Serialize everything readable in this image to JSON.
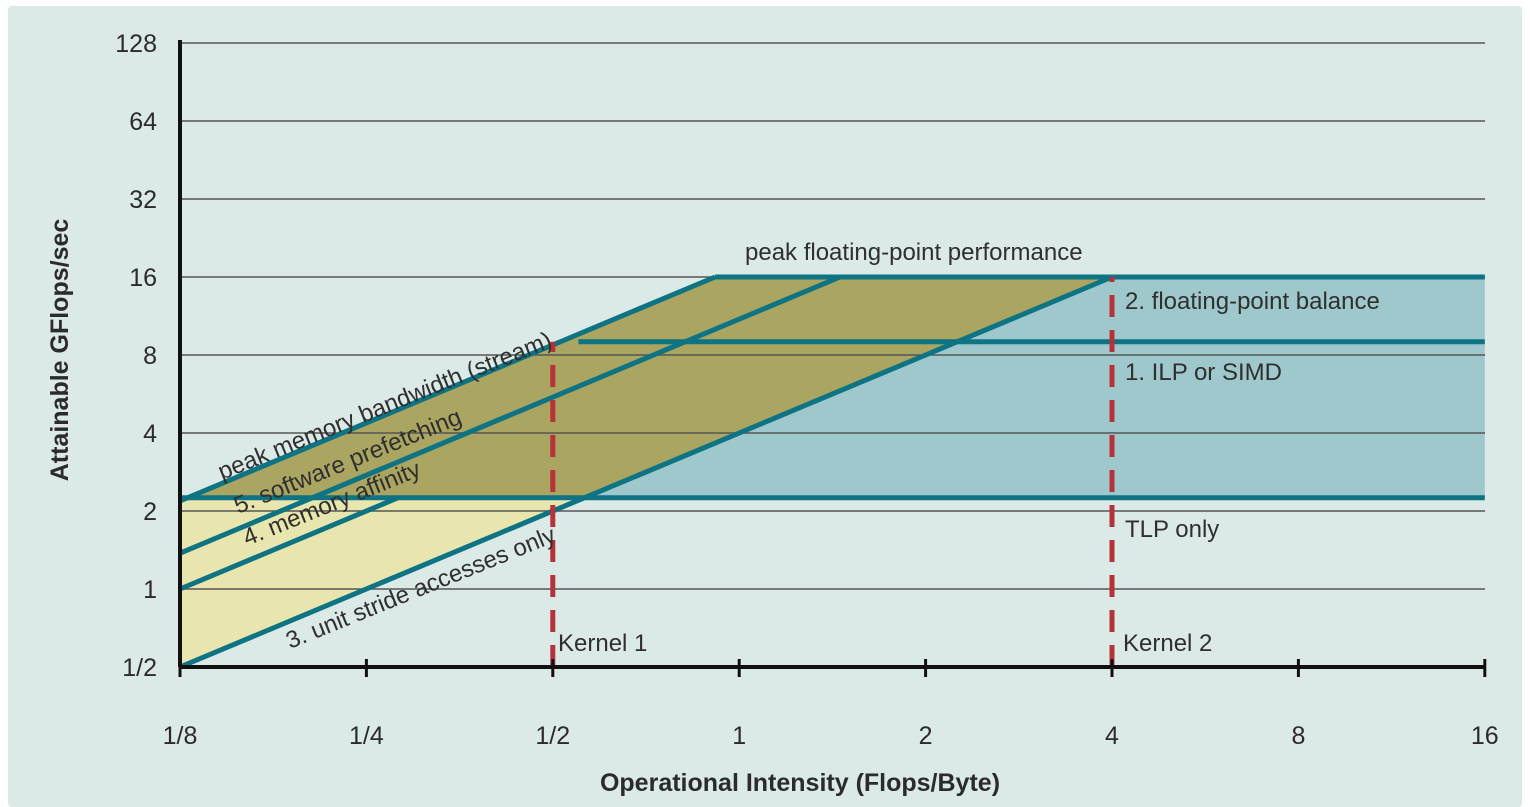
{
  "chart_data": {
    "type": "line",
    "xlabel": "Operational Intensity (Flops/Byte)",
    "ylabel": "Attainable GFlops/sec",
    "x_scale": "log2",
    "y_scale": "log2",
    "xlim": [
      0.125,
      16
    ],
    "ylim": [
      0.5,
      128
    ],
    "x_ticks": [
      {
        "value": 0.125,
        "label": "1/8"
      },
      {
        "value": 0.25,
        "label": "1/4"
      },
      {
        "value": 0.5,
        "label": "1/2"
      },
      {
        "value": 1,
        "label": "1"
      },
      {
        "value": 2,
        "label": "2"
      },
      {
        "value": 4,
        "label": "4"
      },
      {
        "value": 8,
        "label": "8"
      },
      {
        "value": 16,
        "label": "16"
      }
    ],
    "y_ticks": [
      {
        "value": 0.5,
        "label": "1/2"
      },
      {
        "value": 1,
        "label": "1"
      },
      {
        "value": 2,
        "label": "2"
      },
      {
        "value": 4,
        "label": "4"
      },
      {
        "value": 8,
        "label": "8"
      },
      {
        "value": 16,
        "label": "16"
      },
      {
        "value": 32,
        "label": "32"
      },
      {
        "value": 64,
        "label": "64"
      },
      {
        "value": 128,
        "label": "128"
      }
    ],
    "grid": true,
    "ceilings": [
      {
        "name": "peak floating-point performance",
        "orientation": "horizontal",
        "y": 16,
        "x_start": 1.5
      },
      {
        "name": "1. ILP or SIMD",
        "orientation": "horizontal",
        "y": 9,
        "x_start": 0.55
      },
      {
        "name": "2. floating-point balance",
        "orientation": "horizontal",
        "y": 16,
        "x_start": 4
      },
      {
        "name": "TLP only",
        "orientation": "horizontal",
        "y": 2.25,
        "x_start": 0.125
      },
      {
        "name": "peak memory bandwidth (stream)",
        "orientation": "diagonal",
        "bandwidth_gb_s": 17.5
      },
      {
        "name": "5. software prefetching",
        "orientation": "diagonal",
        "bandwidth_gb_s": 11
      },
      {
        "name": "4. memory affinity",
        "orientation": "diagonal",
        "bandwidth_gb_s": 8
      },
      {
        "name": "3. unit stride accesses only",
        "orientation": "diagonal",
        "bandwidth_gb_s": 4
      }
    ],
    "kernels": [
      {
        "name": "Kernel 1",
        "x": 0.5
      },
      {
        "name": "Kernel 2",
        "x": 4
      }
    ],
    "colors": {
      "background": "#dbe9e7",
      "ceiling_line": "#0e7383",
      "compute_region": "#9ec8cc",
      "memory_region": "#e8e6ae",
      "overlap_region": "#aaa560",
      "kernel_line": "#b5323a",
      "grid": "#555555"
    }
  },
  "labels": {
    "ceil_peak_fp": "peak floating-point performance",
    "ceil_fp_balance": "2. floating-point balance",
    "ceil_ilp": "1. ILP or SIMD",
    "ceil_tlp": "TLP only",
    "ceil_stream": "peak memory bandwidth (stream)",
    "ceil_prefetch": "5. software prefetching",
    "ceil_affinity": "4. memory affinity",
    "ceil_unit_stride": "3. unit stride accesses only",
    "kernel1": "Kernel 1",
    "kernel2": "Kernel 2"
  }
}
